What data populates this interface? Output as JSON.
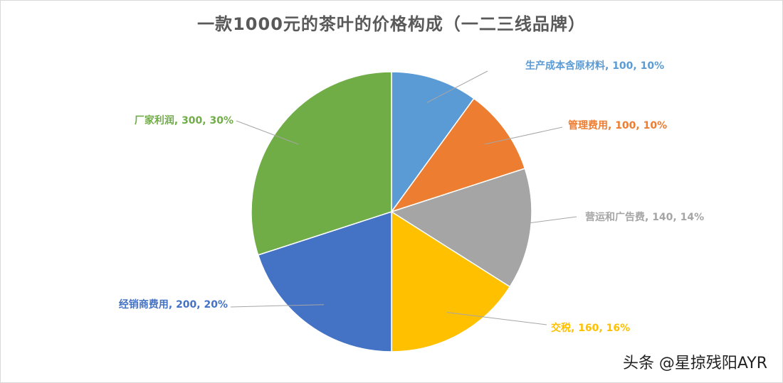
{
  "watermark": "头条 @星掠残阳AYR",
  "chart_data": {
    "type": "pie",
    "title": "一款1000元的茶叶的价格构成（一二三线品牌）",
    "slices": [
      {
        "name": "生产成本含原材料",
        "value": 100,
        "percent": "10%",
        "label": "生产成本含原材料, 100, 10%",
        "color": "#5B9BD5"
      },
      {
        "name": "管理费用",
        "value": 100,
        "percent": "10%",
        "label": "管理费用, 100, 10%",
        "color": "#ED7D31"
      },
      {
        "name": "营运和广告费",
        "value": 140,
        "percent": "14%",
        "label": "营运和广告费, 140, 14%",
        "color": "#A5A5A5"
      },
      {
        "name": "交税",
        "value": 160,
        "percent": "16%",
        "label": "交税, 160, 16%",
        "color": "#FFC000"
      },
      {
        "name": "经销商费用",
        "value": 200,
        "percent": "20%",
        "label": "经销商费用, 200, 20%",
        "color": "#4472C4"
      },
      {
        "name": "厂家利润",
        "value": 300,
        "percent": "30%",
        "label": "厂家利润, 300, 30%",
        "color": "#70AD47"
      }
    ]
  }
}
